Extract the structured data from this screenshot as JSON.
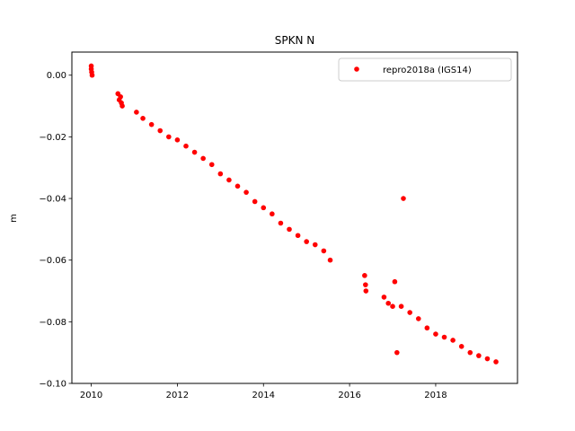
{
  "chart_data": {
    "type": "scatter",
    "title": "SPKN N",
    "xlabel": "",
    "ylabel": "m",
    "xlim": [
      2009.55,
      2019.9
    ],
    "ylim": [
      -0.1,
      0.0075
    ],
    "xticks": [
      2010,
      2012,
      2014,
      2016,
      2018
    ],
    "xtick_labels": [
      "2010",
      "2012",
      "2014",
      "2016",
      "2018"
    ],
    "yticks": [
      0.0,
      -0.02,
      -0.04,
      -0.06,
      -0.08,
      -0.1
    ],
    "ytick_labels": [
      "0.00",
      "−0.02",
      "−0.04",
      "−0.06",
      "−0.08",
      "−0.10"
    ],
    "grid": false,
    "legend": {
      "position": "top-right"
    },
    "series": [
      {
        "name": "repro2018a (IGS14)",
        "color": "#ff0000",
        "marker": "circle",
        "points": [
          [
            2010.0,
            0.003
          ],
          [
            2010.0,
            0.002
          ],
          [
            2010.01,
            0.001
          ],
          [
            2010.02,
            0.0
          ],
          [
            2010.62,
            -0.006
          ],
          [
            2010.65,
            -0.008
          ],
          [
            2010.68,
            -0.007
          ],
          [
            2010.7,
            -0.009
          ],
          [
            2010.72,
            -0.01
          ],
          [
            2011.05,
            -0.012
          ],
          [
            2011.2,
            -0.014
          ],
          [
            2011.4,
            -0.016
          ],
          [
            2011.6,
            -0.018
          ],
          [
            2011.8,
            -0.02
          ],
          [
            2012.0,
            -0.021
          ],
          [
            2012.2,
            -0.023
          ],
          [
            2012.4,
            -0.025
          ],
          [
            2012.6,
            -0.027
          ],
          [
            2012.8,
            -0.029
          ],
          [
            2013.0,
            -0.032
          ],
          [
            2013.2,
            -0.034
          ],
          [
            2013.4,
            -0.036
          ],
          [
            2013.6,
            -0.038
          ],
          [
            2013.8,
            -0.041
          ],
          [
            2014.0,
            -0.043
          ],
          [
            2014.2,
            -0.045
          ],
          [
            2014.4,
            -0.048
          ],
          [
            2014.6,
            -0.05
          ],
          [
            2014.8,
            -0.052
          ],
          [
            2015.0,
            -0.054
          ],
          [
            2015.2,
            -0.055
          ],
          [
            2015.4,
            -0.057
          ],
          [
            2015.55,
            -0.06
          ],
          [
            2016.35,
            -0.065
          ],
          [
            2016.37,
            -0.068
          ],
          [
            2016.38,
            -0.07
          ],
          [
            2016.8,
            -0.072
          ],
          [
            2016.9,
            -0.074
          ],
          [
            2017.0,
            -0.075
          ],
          [
            2017.2,
            -0.075
          ],
          [
            2017.4,
            -0.077
          ],
          [
            2017.6,
            -0.079
          ],
          [
            2017.8,
            -0.082
          ],
          [
            2018.0,
            -0.084
          ],
          [
            2018.2,
            -0.085
          ],
          [
            2018.4,
            -0.086
          ],
          [
            2018.6,
            -0.088
          ],
          [
            2018.8,
            -0.09
          ],
          [
            2019.0,
            -0.091
          ],
          [
            2019.2,
            -0.092
          ],
          [
            2019.4,
            -0.093
          ],
          [
            2017.25,
            -0.04
          ],
          [
            2017.1,
            -0.09
          ],
          [
            2017.05,
            -0.067
          ]
        ]
      }
    ]
  }
}
